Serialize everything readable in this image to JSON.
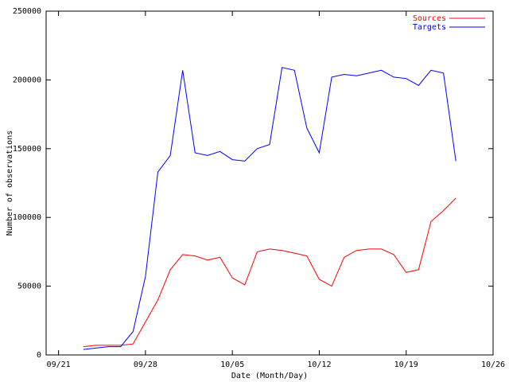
{
  "chart_data": {
    "type": "line",
    "x_label": "Date (Month/Day)",
    "y_label": "Number of observations",
    "x": [
      "09/23",
      "09/24",
      "09/25",
      "09/26",
      "09/27",
      "09/28",
      "09/29",
      "09/30",
      "10/01",
      "10/02",
      "10/03",
      "10/04",
      "10/05",
      "10/06",
      "10/07",
      "10/08",
      "10/09",
      "10/10",
      "10/11",
      "10/12",
      "10/13",
      "10/14",
      "10/15",
      "10/16",
      "10/17",
      "10/18",
      "10/19",
      "10/20",
      "10/21",
      "10/22",
      "10/23"
    ],
    "series": [
      {
        "name": "Sources",
        "color": "#ff0000",
        "values": [
          6000,
          7000,
          7000,
          7000,
          8000,
          24000,
          40000,
          62000,
          73000,
          72000,
          69000,
          71000,
          56000,
          51000,
          75000,
          77000,
          76000,
          74000,
          72000,
          55000,
          50000,
          71000,
          76000,
          77000,
          77000,
          73000,
          60000,
          62000,
          97000,
          105000,
          114000
        ]
      },
      {
        "name": "Targets",
        "color": "#0000ff",
        "values": [
          4000,
          5000,
          6000,
          6000,
          17000,
          57000,
          133000,
          145000,
          207000,
          147000,
          145000,
          148000,
          142000,
          141000,
          150000,
          153000,
          209000,
          207000,
          165000,
          147000,
          202000,
          204000,
          203000,
          205000,
          207000,
          202000,
          201000,
          196000,
          207000,
          205000,
          141000
        ]
      }
    ],
    "xlim": [
      "09/20",
      "10/26"
    ],
    "xticks": [
      "09/21",
      "09/28",
      "10/05",
      "10/12",
      "10/19",
      "10/26"
    ],
    "ylim": [
      0,
      250000
    ],
    "yticks": [
      0,
      50000,
      100000,
      150000,
      200000,
      250000
    ],
    "legend": "top-right"
  }
}
